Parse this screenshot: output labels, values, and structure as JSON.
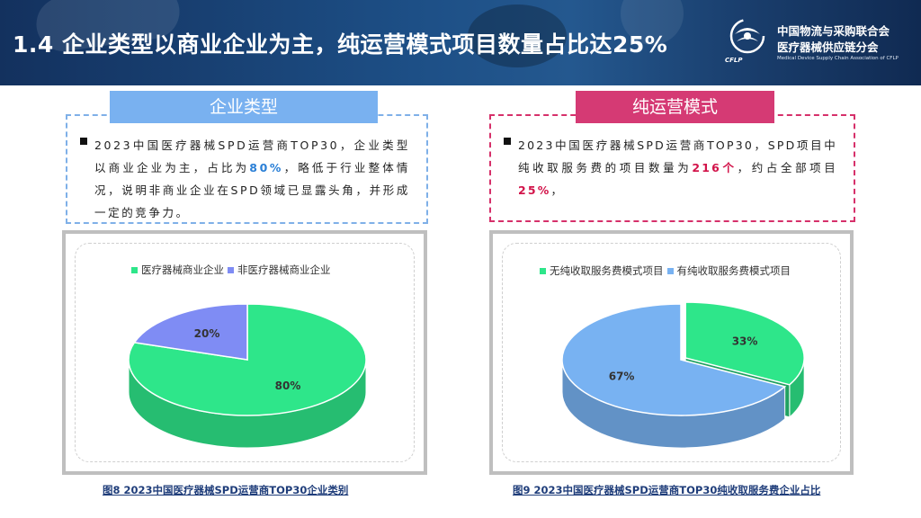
{
  "header": {
    "title": "1.4 企业类型以商业企业为主，纯运营模式项目数量占比达25%",
    "org_line1": "中国物流与采购联合会",
    "org_line2": "医疗器械供应链分会",
    "org_en": "Medical Device Supply Chain Association of CFLP",
    "logo_text": "CFLP"
  },
  "left_panel": {
    "tag": "企业类型",
    "text_before": "2023中国医疗器械SPD运营商TOP30，企业类型以商业企业为主，占比为",
    "highlight": "80%",
    "text_after": "，略低于行业整体情况，说明非商业企业在SPD领域已显露头角，并形成一定的竞争力。",
    "legend": [
      "医疗器械商业企业",
      "非医疗器械商业企业"
    ],
    "caption": "图8 2023中国医疗器械SPD运营商TOP30企业类别"
  },
  "right_panel": {
    "tag": "纯运营模式",
    "text_before": "2023中国医疗器械SPD运营商TOP30，SPD项目中纯收取服务费的项目数量为",
    "highlight1": "216个",
    "text_middle": "，约占全部项目",
    "highlight2": "25%",
    "text_after": "，",
    "legend": [
      "无纯收取服务费模式项目",
      "有纯收取服务费模式项目"
    ],
    "caption": "图9 2023中国医疗器械SPD运营商TOP30纯收取服务费企业占比"
  },
  "colors": {
    "green": "#2ee68a",
    "blue": "#7f8cf4",
    "light_blue": "#78b2f2",
    "tag_blue": "#79b1f0",
    "tag_pink": "#d53a74",
    "highlight_red": "#d2144a",
    "highlight_blue": "#2a7fd6"
  },
  "chart_data": [
    {
      "type": "pie",
      "title": "",
      "labels": [
        "医疗器械商业企业",
        "非医疗器械商业企业"
      ],
      "values": [
        80,
        20
      ],
      "value_labels": [
        "80%",
        "20%"
      ],
      "colors": [
        "#2ee68a",
        "#7f8cf4"
      ],
      "legend": "top"
    },
    {
      "type": "pie",
      "title": "",
      "labels": [
        "无纯收取服务费模式项目",
        "有纯收取服务费模式项目"
      ],
      "values": [
        33,
        67
      ],
      "value_labels": [
        "33%",
        "67%"
      ],
      "colors": [
        "#2ee68a",
        "#78b2f2"
      ],
      "legend": "top"
    }
  ]
}
